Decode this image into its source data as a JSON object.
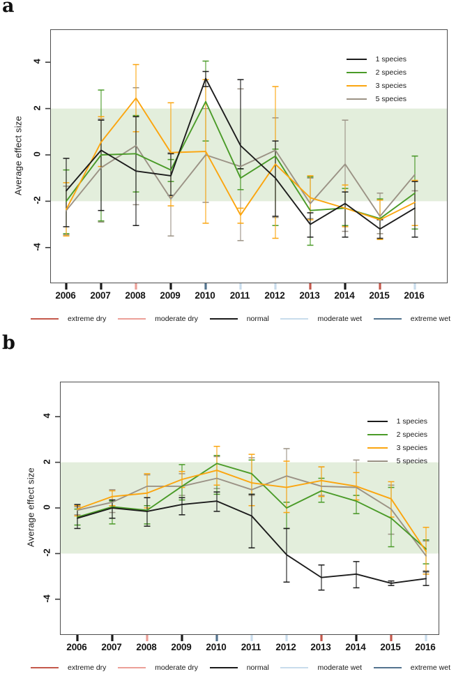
{
  "figure_title": "",
  "climate_legend": [
    {
      "label": "extreme dry",
      "color": "#c4584b"
    },
    {
      "label": "moderate dry",
      "color": "#ec9f97"
    },
    {
      "label": "normal",
      "color": "#1a1a1a"
    },
    {
      "label": "moderate wet",
      "color": "#c8dcec"
    },
    {
      "label": "extreme wet",
      "color": "#53738e"
    }
  ],
  "chart_data": [
    {
      "type": "line",
      "panel_label": "a",
      "title": "",
      "xlabel": "",
      "ylabel": "Average effect size",
      "x": [
        2006,
        2007,
        2008,
        2009,
        2010,
        2011,
        2012,
        2013,
        2014,
        2015,
        2016
      ],
      "ylim": [
        -5.5,
        5.5
      ],
      "yticks": [
        -4,
        -2,
        0,
        2,
        4
      ],
      "grid": false,
      "legend_position": "top-right",
      "band": {
        "from": -2,
        "to": 2,
        "color": "#e3eedc"
      },
      "x_tick_categories": [
        "normal",
        "normal",
        "moderate dry",
        "normal",
        "extreme wet",
        "moderate wet",
        "moderate wet",
        "extreme dry",
        "normal",
        "extreme dry",
        "moderate wet"
      ],
      "series": [
        {
          "name": "1 species",
          "color": "#1c1c1c",
          "values": [
            -1.55,
            0.2,
            -0.7,
            -0.9,
            3.3,
            0.4,
            -1.0,
            -3.0,
            -2.1,
            -3.2,
            -2.3
          ],
          "err_lo": [
            -3.1,
            -2.4,
            -3.05,
            -1.75,
            2.95,
            -0.6,
            -2.65,
            -3.55,
            -3.55,
            -3.6,
            -3.55
          ],
          "err_hi": [
            -0.15,
            1.5,
            1.65,
            0.05,
            3.6,
            3.25,
            0.6,
            -2.5,
            -1.6,
            -2.8,
            -1.15
          ]
        },
        {
          "name": "2 species",
          "color": "#4a9b28",
          "values": [
            -2.0,
            0.0,
            0.05,
            -0.65,
            2.3,
            -1.0,
            -0.05,
            -2.4,
            -2.3,
            -2.75,
            -1.65
          ],
          "err_lo": [
            -3.4,
            -2.85,
            -1.6,
            -1.15,
            0.6,
            -1.5,
            -3.05,
            -3.9,
            -3.05,
            -3.65,
            -3.2
          ],
          "err_hi": [
            -0.65,
            2.8,
            1.7,
            -0.2,
            4.05,
            -0.6,
            0.25,
            -0.95,
            -1.45,
            -1.9,
            -0.05
          ]
        },
        {
          "name": "3 species",
          "color": "#fba50f",
          "values": [
            -2.35,
            0.55,
            2.45,
            0.1,
            0.15,
            -2.6,
            -0.4,
            -1.85,
            -2.3,
            -2.8,
            -2.05
          ],
          "err_lo": [
            -3.5,
            -0.5,
            1.0,
            -2.2,
            -2.95,
            -2.95,
            -3.6,
            -2.8,
            -3.1,
            -3.65,
            -3.05
          ],
          "err_hi": [
            -1.2,
            1.65,
            3.9,
            2.25,
            3.25,
            -2.3,
            2.95,
            -0.9,
            -1.3,
            -1.95,
            -1.1
          ]
        },
        {
          "name": "5 species",
          "color": "#9b9285",
          "values": [
            -2.4,
            -0.55,
            0.4,
            -1.9,
            0.0,
            -0.5,
            0.2,
            -2.1,
            -0.4,
            -2.65,
            -0.85
          ],
          "err_lo": [
            -3.45,
            -2.9,
            -2.15,
            -3.5,
            -2.05,
            -3.7,
            -2.7,
            -2.75,
            -3.3,
            -3.4,
            -1.55
          ],
          "err_hi": [
            -1.35,
            1.55,
            2.9,
            0.1,
            2.0,
            2.85,
            1.6,
            -1.0,
            1.5,
            -1.65,
            -0.05
          ]
        }
      ]
    },
    {
      "type": "line",
      "panel_label": "b",
      "title": "",
      "xlabel": "",
      "ylabel": "Average effect size",
      "x": [
        2006,
        2007,
        2008,
        2009,
        2010,
        2011,
        2012,
        2013,
        2014,
        2015,
        2016
      ],
      "ylim": [
        -5.5,
        5.5
      ],
      "yticks": [
        -4,
        -2,
        0,
        2,
        4
      ],
      "grid": false,
      "legend_position": "top-right",
      "band": {
        "from": -2,
        "to": 2,
        "color": "#e3eedc"
      },
      "x_tick_categories": [
        "normal",
        "normal",
        "moderate dry",
        "normal",
        "extreme wet",
        "moderate wet",
        "moderate wet",
        "extreme dry",
        "normal",
        "extreme dry",
        "moderate wet"
      ],
      "series": [
        {
          "name": "1 species",
          "color": "#1c1c1c",
          "values": [
            -0.45,
            0.0,
            -0.15,
            0.15,
            0.3,
            -0.35,
            -2.05,
            -3.05,
            -2.9,
            -3.3,
            -3.1
          ],
          "err_lo": [
            -0.9,
            -0.45,
            -0.8,
            -0.3,
            -0.15,
            -1.75,
            -3.25,
            -3.6,
            -3.5,
            -3.4,
            -3.4
          ],
          "err_hi": [
            0.15,
            0.35,
            0.45,
            0.45,
            0.7,
            0.6,
            -0.9,
            -2.5,
            -2.35,
            -3.2,
            -2.8
          ]
        },
        {
          "name": "2 species",
          "color": "#4a9b28",
          "values": [
            -0.4,
            0.05,
            -0.1,
            0.95,
            1.95,
            1.5,
            0.0,
            0.75,
            0.3,
            -0.45,
            -1.8
          ],
          "err_lo": [
            -0.75,
            -0.7,
            -0.7,
            0.35,
            0.6,
            0.6,
            -0.9,
            0.25,
            -0.25,
            -1.7,
            -2.45
          ],
          "err_hi": [
            -0.05,
            0.3,
            0.1,
            1.9,
            2.3,
            2.1,
            0.25,
            1.3,
            0.55,
            0.9,
            -1.4
          ]
        },
        {
          "name": "3 species",
          "color": "#fba50f",
          "values": [
            -0.05,
            0.5,
            0.65,
            1.25,
            1.65,
            1.1,
            0.9,
            1.2,
            0.95,
            0.4,
            -1.9
          ],
          "err_lo": [
            -0.35,
            0.1,
            0.0,
            0.9,
            1.0,
            0.1,
            -0.2,
            0.5,
            0.35,
            -0.4,
            -2.9
          ],
          "err_hi": [
            0.1,
            0.75,
            1.5,
            1.6,
            2.7,
            2.35,
            2.05,
            1.8,
            1.55,
            1.15,
            -0.85
          ]
        },
        {
          "name": "5 species",
          "color": "#9b9285",
          "values": [
            -0.1,
            0.25,
            0.95,
            0.95,
            1.3,
            0.8,
            1.4,
            0.95,
            0.9,
            -0.05,
            -2.1
          ],
          "err_lo": [
            -0.3,
            -0.2,
            0.45,
            0.55,
            0.85,
            0.55,
            -0.9,
            0.55,
            -0.25,
            -1.15,
            -2.75
          ],
          "err_hi": [
            0.05,
            0.8,
            1.45,
            1.5,
            2.25,
            2.2,
            2.6,
            1.8,
            2.1,
            1.0,
            -1.45
          ]
        }
      ]
    }
  ]
}
